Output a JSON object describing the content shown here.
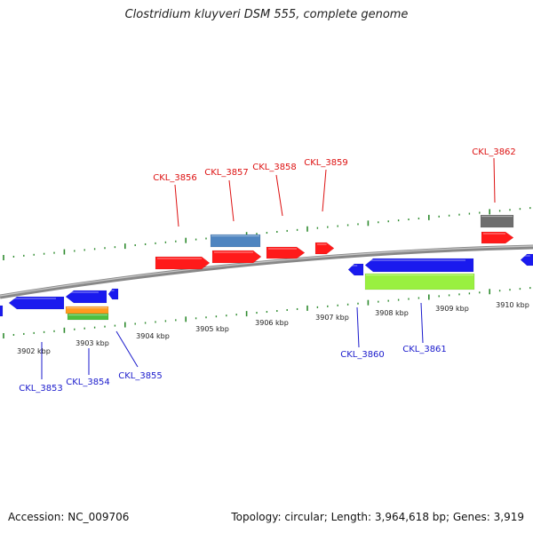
{
  "title": "Clostridium kluyveri DSM 555, complete genome",
  "footer": {
    "accession": "Accession: NC_009706",
    "stats": "Topology: circular; Length: 3,964,618 bp; Genes: 3,919"
  },
  "colors": {
    "forward_gene": "#ff1a1a",
    "reverse_gene": "#1a1aee",
    "forward_label": "#dd1111",
    "reverse_label": "#1a1acc",
    "tick": "#2e8b2e",
    "backbone": "#8a8a8a",
    "rna_block": "#4f85c0",
    "grey_block": "#6e6e6e",
    "lime_block": "#99f040",
    "orange_block": "#ff9a1f",
    "green_block": "#4cbf3f",
    "kbp_text": "#222222"
  },
  "kbp_labels": [
    "3902 kbp",
    "3903 kbp",
    "3904 kbp",
    "3905 kbp",
    "3906 kbp",
    "3907 kbp",
    "3908 kbp",
    "3909 kbp",
    "3910 kbp"
  ],
  "forward_labels": [
    "CKL_3856",
    "CKL_3857",
    "CKL_3858",
    "CKL_3859",
    "CKL_3862"
  ],
  "reverse_labels": [
    "CKL_3853",
    "CKL_3854",
    "CKL_3855",
    "CKL_3860",
    "CKL_3861"
  ]
}
